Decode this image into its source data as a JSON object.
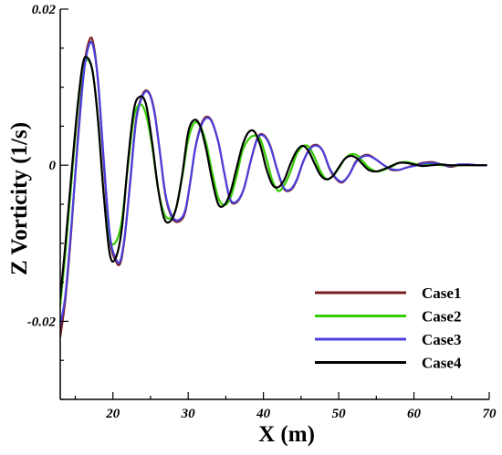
{
  "chart_data": {
    "type": "line",
    "title": "",
    "xlabel": "X (m)",
    "ylabel": "Z Vorticity (1/s)",
    "xlim": [
      13,
      70
    ],
    "ylim": [
      -0.03,
      0.02
    ],
    "xticks": [
      20,
      30,
      40,
      50,
      60,
      70
    ],
    "xtick_labels": [
      "20",
      "30",
      "40",
      "50",
      "60",
      "70"
    ],
    "yticks": [
      0.02,
      0,
      -0.02
    ],
    "ytick_labels": [
      "0.02",
      "0",
      "-0.02"
    ],
    "grid": false,
    "legend_position": "bottom-right",
    "series": [
      {
        "name": "Case1",
        "color": "#7a1f1f",
        "x": [
          13.0,
          13.7,
          14.5,
          15.3,
          16.1,
          16.7,
          17.3,
          18.0,
          18.8,
          19.6,
          20.4,
          21.0,
          21.6,
          22.3,
          23.1,
          24.0,
          24.8,
          25.5,
          26.2,
          27.0,
          27.9,
          28.8,
          29.6,
          30.3,
          31.0,
          32.0,
          33.0,
          34.0,
          34.8,
          35.6,
          36.5,
          37.4,
          38.3,
          39.2,
          40.0,
          40.9,
          41.8,
          42.7,
          43.6,
          44.4,
          45.3,
          46.2,
          47.1,
          47.9,
          48.8,
          49.7,
          50.5,
          51.4,
          52.3,
          53.2,
          54.0,
          55.0,
          56.0,
          57.0,
          58.0,
          59.0,
          60.0,
          61.2,
          62.4,
          63.6,
          64.8,
          66.0,
          67.2,
          68.4,
          69.6
        ],
        "y": [
          -0.022,
          -0.017,
          -0.008,
          0.003,
          0.012,
          0.0155,
          0.016,
          0.011,
          0.0,
          -0.0095,
          -0.0123,
          -0.0125,
          -0.009,
          -0.002,
          0.006,
          0.0092,
          0.0093,
          0.007,
          0.002,
          -0.004,
          -0.0068,
          -0.0072,
          -0.006,
          -0.002,
          0.0025,
          0.0058,
          0.0059,
          0.003,
          -0.001,
          -0.0045,
          -0.0047,
          -0.003,
          0.0005,
          0.0035,
          0.0039,
          0.0025,
          -0.0005,
          -0.003,
          -0.0032,
          -0.002,
          0.0005,
          0.0022,
          0.0026,
          0.0018,
          -0.0005,
          -0.0018,
          -0.0022,
          -0.0012,
          0.0005,
          0.0012,
          0.0013,
          0.0007,
          0.0,
          -0.0006,
          -0.0006,
          -0.0003,
          0.0,
          0.0003,
          0.0004,
          0.0001,
          -0.0002,
          0.0,
          0.0001,
          0.0,
          0.0
        ]
      },
      {
        "name": "Case2",
        "color": "#33cc00",
        "x": [
          13.0,
          13.7,
          14.5,
          15.3,
          16.0,
          16.6,
          17.3,
          18.0,
          18.8,
          19.6,
          20.4,
          21.2,
          22.0,
          22.8,
          23.6,
          24.4,
          25.2,
          26.0,
          26.8,
          27.6,
          28.4,
          29.2,
          30.0,
          30.8,
          31.6,
          32.4,
          33.2,
          34.0,
          34.8,
          35.6,
          36.4,
          37.2,
          38.0,
          38.8,
          39.6,
          40.4,
          41.2,
          42.0,
          42.8,
          43.6,
          44.4,
          45.2,
          46.0,
          46.8,
          47.6,
          48.4,
          49.2,
          50.0,
          50.8,
          51.6,
          52.4,
          53.2,
          54.0,
          55.0,
          56.0,
          57.0,
          58.0,
          59.0,
          60.0,
          61.2,
          62.4,
          63.6,
          64.8,
          66.0,
          67.2,
          68.4,
          69.6
        ],
        "y": [
          -0.018,
          -0.011,
          -0.002,
          0.007,
          0.0125,
          0.0135,
          0.012,
          0.006,
          -0.004,
          -0.0095,
          -0.0098,
          -0.007,
          0.0,
          0.0062,
          0.0078,
          0.0065,
          0.0025,
          -0.003,
          -0.0062,
          -0.0068,
          -0.0055,
          -0.0015,
          0.0032,
          0.0054,
          0.005,
          0.0028,
          -0.001,
          -0.0042,
          -0.0051,
          -0.0042,
          -0.0015,
          0.0018,
          0.0033,
          0.0038,
          0.0033,
          0.0008,
          -0.002,
          -0.0033,
          -0.0025,
          -0.0008,
          0.0014,
          0.0024,
          0.0024,
          0.001,
          -0.0008,
          -0.0018,
          -0.0014,
          -0.0004,
          0.0008,
          0.0014,
          0.0013,
          0.0005,
          -0.0003,
          -0.0008,
          -0.0006,
          -0.0002,
          0.0003,
          0.0004,
          0.0002,
          0.0,
          0.0001,
          0.0,
          -0.0001,
          0.0,
          0.0,
          0.0,
          0.0
        ]
      },
      {
        "name": "Case3",
        "color": "#4b3fdd",
        "x": [
          13.0,
          13.7,
          14.5,
          15.3,
          16.1,
          16.7,
          17.3,
          18.0,
          18.8,
          19.6,
          20.4,
          21.0,
          21.6,
          22.3,
          23.1,
          24.0,
          24.8,
          25.5,
          26.2,
          27.0,
          27.9,
          28.8,
          29.6,
          30.3,
          31.0,
          32.0,
          33.0,
          34.0,
          34.8,
          35.6,
          36.5,
          37.4,
          38.3,
          39.2,
          40.0,
          40.9,
          41.8,
          42.7,
          43.6,
          44.4,
          45.3,
          46.2,
          47.1,
          47.9,
          48.8,
          49.7,
          50.5,
          51.4,
          52.3,
          53.2,
          54.0,
          55.0,
          56.0,
          57.0,
          58.0,
          59.0,
          60.0,
          61.2,
          62.4,
          63.6,
          64.8,
          66.0,
          67.2,
          68.4,
          69.6
        ],
        "y": [
          -0.0205,
          -0.0165,
          -0.0075,
          0.0025,
          0.0115,
          0.015,
          0.0155,
          0.011,
          0.0005,
          -0.009,
          -0.012,
          -0.0122,
          -0.0088,
          -0.0022,
          0.0058,
          0.009,
          0.0092,
          0.0068,
          0.002,
          -0.0038,
          -0.0066,
          -0.007,
          -0.0058,
          -0.002,
          0.0024,
          0.0056,
          0.0058,
          0.003,
          -0.001,
          -0.0044,
          -0.0046,
          -0.003,
          0.0005,
          0.0034,
          0.0038,
          0.0024,
          -0.0005,
          -0.0029,
          -0.0031,
          -0.0019,
          0.0005,
          0.0021,
          0.0025,
          0.0018,
          -0.0004,
          -0.0017,
          -0.0021,
          -0.0012,
          0.0004,
          0.0011,
          0.0012,
          0.0007,
          0.0,
          -0.0005,
          -0.0006,
          -0.0003,
          -0.0001,
          0.0002,
          0.0003,
          0.0001,
          -0.0001,
          0.0001,
          0.0001,
          0.0,
          0.0
        ]
      },
      {
        "name": "Case4",
        "color": "#000000",
        "x": [
          13.0,
          13.7,
          14.5,
          15.3,
          16.0,
          16.6,
          17.3,
          18.0,
          18.8,
          19.6,
          20.4,
          21.2,
          22.0,
          22.8,
          23.6,
          24.4,
          25.2,
          26.0,
          26.8,
          27.6,
          28.4,
          29.2,
          30.0,
          30.8,
          31.6,
          32.4,
          33.2,
          34.0,
          34.8,
          35.6,
          36.4,
          37.2,
          38.0,
          38.8,
          39.6,
          40.4,
          41.2,
          42.0,
          42.8,
          43.6,
          44.4,
          45.2,
          46.0,
          46.8,
          47.6,
          48.4,
          49.2,
          50.0,
          50.8,
          51.6,
          52.4,
          53.2,
          54.0,
          55.0,
          56.0,
          57.0,
          58.0,
          59.0,
          60.0,
          61.2,
          62.4,
          63.6,
          64.8,
          66.0,
          67.2,
          68.4,
          69.6
        ],
        "y": [
          -0.017,
          -0.01,
          -0.001,
          0.0075,
          0.013,
          0.0138,
          0.012,
          0.006,
          -0.004,
          -0.0115,
          -0.0118,
          -0.008,
          0.0005,
          0.0072,
          0.0088,
          0.0078,
          0.003,
          -0.003,
          -0.0068,
          -0.0072,
          -0.0055,
          -0.0013,
          0.0042,
          0.0058,
          0.005,
          0.002,
          -0.002,
          -0.005,
          -0.0051,
          -0.0035,
          -0.0005,
          0.0025,
          0.0042,
          0.0043,
          0.0025,
          -0.0005,
          -0.0025,
          -0.0028,
          -0.0018,
          0.0002,
          0.0018,
          0.0025,
          0.0018,
          0.0002,
          -0.0013,
          -0.0018,
          -0.0014,
          -0.0003,
          0.0008,
          0.0012,
          0.0009,
          0.0001,
          -0.0006,
          -0.0008,
          -0.0005,
          -0.0001,
          0.0003,
          0.0003,
          0.0001,
          -0.0001,
          0.0,
          0.0001,
          0.0,
          0.0,
          0.0,
          0.0,
          0.0
        ]
      }
    ]
  }
}
